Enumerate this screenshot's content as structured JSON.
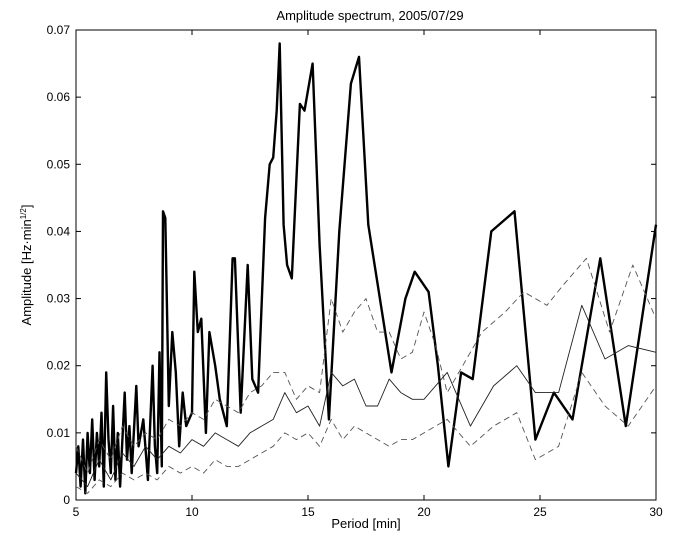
{
  "chart_data": {
    "type": "line",
    "title": "Amplitude spectrum, 2005/07/29",
    "xlabel": "Period [min]",
    "ylabel_main": "Amplitude [Hz",
    "ylabel_unit": "·min",
    "ylabel_exp": "1/2",
    "ylabel_close": "]",
    "xlim": [
      5,
      30
    ],
    "ylim": [
      0,
      0.07
    ],
    "xticks": [
      5,
      10,
      15,
      20,
      25,
      30
    ],
    "yticks": [
      0,
      0.01,
      0.02,
      0.03,
      0.04,
      0.05,
      0.06,
      0.07
    ],
    "ytick_labels": [
      "0",
      "0.01",
      "0.02",
      "0.03",
      "0.04",
      "0.05",
      "0.06",
      "0.07"
    ],
    "grid": false,
    "series": [
      {
        "style": "thick",
        "color": "#000000",
        "points": [
          [
            5.0,
            0.004
          ],
          [
            5.1,
            0.008
          ],
          [
            5.2,
            0.002
          ],
          [
            5.3,
            0.009
          ],
          [
            5.4,
            0.001
          ],
          [
            5.5,
            0.01
          ],
          [
            5.6,
            0.004
          ],
          [
            5.7,
            0.012
          ],
          [
            5.8,
            0.003
          ],
          [
            5.9,
            0.01
          ],
          [
            6.0,
            0.005
          ],
          [
            6.1,
            0.013
          ],
          [
            6.2,
            0.002
          ],
          [
            6.3,
            0.019
          ],
          [
            6.4,
            0.009
          ],
          [
            6.5,
            0.004
          ],
          [
            6.6,
            0.014
          ],
          [
            6.7,
            0.003
          ],
          [
            6.8,
            0.01
          ],
          [
            6.9,
            0.002
          ],
          [
            7.1,
            0.016
          ],
          [
            7.2,
            0.006
          ],
          [
            7.3,
            0.011
          ],
          [
            7.4,
            0.004
          ],
          [
            7.6,
            0.017
          ],
          [
            7.7,
            0.008
          ],
          [
            7.9,
            0.012
          ],
          [
            8.1,
            0.003
          ],
          [
            8.3,
            0.02
          ],
          [
            8.4,
            0.008
          ],
          [
            8.5,
            0.004
          ],
          [
            8.6,
            0.022
          ],
          [
            8.7,
            0.005
          ],
          [
            8.75,
            0.043
          ],
          [
            8.85,
            0.042
          ],
          [
            9.0,
            0.014
          ],
          [
            9.15,
            0.025
          ],
          [
            9.3,
            0.019
          ],
          [
            9.45,
            0.008
          ],
          [
            9.6,
            0.016
          ],
          [
            9.75,
            0.011
          ],
          [
            10.0,
            0.013
          ],
          [
            10.1,
            0.034
          ],
          [
            10.25,
            0.025
          ],
          [
            10.4,
            0.027
          ],
          [
            10.6,
            0.01
          ],
          [
            10.75,
            0.025
          ],
          [
            11.0,
            0.02
          ],
          [
            11.2,
            0.015
          ],
          [
            11.5,
            0.011
          ],
          [
            11.75,
            0.036
          ],
          [
            11.85,
            0.036
          ],
          [
            12.1,
            0.013
          ],
          [
            12.4,
            0.035
          ],
          [
            12.6,
            0.018
          ],
          [
            12.85,
            0.016
          ],
          [
            13.15,
            0.042
          ],
          [
            13.35,
            0.05
          ],
          [
            13.5,
            0.051
          ],
          [
            13.65,
            0.058
          ],
          [
            13.78,
            0.068
          ],
          [
            13.95,
            0.041
          ],
          [
            14.1,
            0.035
          ],
          [
            14.3,
            0.033
          ],
          [
            14.65,
            0.059
          ],
          [
            14.85,
            0.058
          ],
          [
            15.2,
            0.065
          ],
          [
            15.5,
            0.038
          ],
          [
            15.9,
            0.012
          ],
          [
            16.35,
            0.04
          ],
          [
            16.85,
            0.062
          ],
          [
            17.2,
            0.066
          ],
          [
            17.6,
            0.041
          ],
          [
            18.1,
            0.03
          ],
          [
            18.6,
            0.019
          ],
          [
            19.2,
            0.03
          ],
          [
            19.6,
            0.034
          ],
          [
            20.2,
            0.031
          ],
          [
            20.6,
            0.02
          ],
          [
            21.05,
            0.005
          ],
          [
            21.6,
            0.019
          ],
          [
            22.1,
            0.018
          ],
          [
            22.9,
            0.04
          ],
          [
            23.9,
            0.043
          ],
          [
            24.8,
            0.009
          ],
          [
            25.6,
            0.016
          ],
          [
            26.4,
            0.012
          ],
          [
            27.6,
            0.036
          ],
          [
            28.7,
            0.011
          ],
          [
            30.0,
            0.041
          ]
        ]
      },
      {
        "style": "dashed",
        "color": "#555555",
        "points": [
          [
            5.0,
            0.008
          ],
          [
            5.5,
            0.004
          ],
          [
            6.0,
            0.009
          ],
          [
            6.5,
            0.006
          ],
          [
            7.0,
            0.011
          ],
          [
            7.5,
            0.008
          ],
          [
            8.0,
            0.01
          ],
          [
            8.5,
            0.009
          ],
          [
            9.0,
            0.012
          ],
          [
            9.5,
            0.011
          ],
          [
            10.0,
            0.013
          ],
          [
            10.5,
            0.012
          ],
          [
            11.0,
            0.015
          ],
          [
            11.5,
            0.014
          ],
          [
            12.0,
            0.013
          ],
          [
            12.5,
            0.016
          ],
          [
            13.0,
            0.017
          ],
          [
            13.5,
            0.019
          ],
          [
            14.0,
            0.019
          ],
          [
            14.5,
            0.015
          ],
          [
            15.0,
            0.017
          ],
          [
            15.5,
            0.016
          ],
          [
            16.0,
            0.03
          ],
          [
            16.5,
            0.025
          ],
          [
            17.0,
            0.028
          ],
          [
            17.5,
            0.03
          ],
          [
            18.0,
            0.025
          ],
          [
            18.5,
            0.025
          ],
          [
            19.0,
            0.021
          ],
          [
            19.5,
            0.022
          ],
          [
            20.0,
            0.028
          ],
          [
            20.5,
            0.023
          ],
          [
            21.0,
            0.016
          ],
          [
            22.0,
            0.022
          ],
          [
            22.5,
            0.025
          ],
          [
            23.5,
            0.028
          ],
          [
            24.3,
            0.031
          ],
          [
            25.3,
            0.029
          ],
          [
            26.0,
            0.032
          ],
          [
            27.0,
            0.036
          ],
          [
            28.0,
            0.025
          ],
          [
            29.0,
            0.035
          ],
          [
            30.0,
            0.027
          ]
        ]
      },
      {
        "style": "thin",
        "color": "#222222",
        "points": [
          [
            5.0,
            0.004
          ],
          [
            5.5,
            0.002
          ],
          [
            6.0,
            0.006
          ],
          [
            6.5,
            0.003
          ],
          [
            7.0,
            0.007
          ],
          [
            7.5,
            0.005
          ],
          [
            8.0,
            0.008
          ],
          [
            8.5,
            0.006
          ],
          [
            9.0,
            0.008
          ],
          [
            9.5,
            0.007
          ],
          [
            10.0,
            0.009
          ],
          [
            10.5,
            0.008
          ],
          [
            11.0,
            0.01
          ],
          [
            11.5,
            0.009
          ],
          [
            12.0,
            0.008
          ],
          [
            12.5,
            0.01
          ],
          [
            13.0,
            0.011
          ],
          [
            13.5,
            0.012
          ],
          [
            14.0,
            0.016
          ],
          [
            14.5,
            0.013
          ],
          [
            15.0,
            0.014
          ],
          [
            15.5,
            0.011
          ],
          [
            16.0,
            0.019
          ],
          [
            16.5,
            0.017
          ],
          [
            17.0,
            0.018
          ],
          [
            17.5,
            0.014
          ],
          [
            18.0,
            0.014
          ],
          [
            18.5,
            0.018
          ],
          [
            19.0,
            0.016
          ],
          [
            19.5,
            0.015
          ],
          [
            20.0,
            0.015
          ],
          [
            21.0,
            0.019
          ],
          [
            22.0,
            0.011
          ],
          [
            23.0,
            0.017
          ],
          [
            24.0,
            0.02
          ],
          [
            24.8,
            0.016
          ],
          [
            25.8,
            0.016
          ],
          [
            26.8,
            0.029
          ],
          [
            27.8,
            0.021
          ],
          [
            28.8,
            0.023
          ],
          [
            30.0,
            0.022
          ]
        ]
      },
      {
        "style": "dashed",
        "color": "#555555",
        "points": [
          [
            5.0,
            0.002
          ],
          [
            5.5,
            0.001
          ],
          [
            6.0,
            0.003
          ],
          [
            6.5,
            0.002
          ],
          [
            7.0,
            0.004
          ],
          [
            7.5,
            0.003
          ],
          [
            8.0,
            0.004
          ],
          [
            8.5,
            0.003
          ],
          [
            9.0,
            0.005
          ],
          [
            9.5,
            0.004
          ],
          [
            10.0,
            0.005
          ],
          [
            10.5,
            0.004
          ],
          [
            11.0,
            0.006
          ],
          [
            11.5,
            0.005
          ],
          [
            12.0,
            0.005
          ],
          [
            12.5,
            0.006
          ],
          [
            13.0,
            0.007
          ],
          [
            13.5,
            0.008
          ],
          [
            14.0,
            0.01
          ],
          [
            14.5,
            0.009
          ],
          [
            15.0,
            0.01
          ],
          [
            15.5,
            0.008
          ],
          [
            16.0,
            0.012
          ],
          [
            16.5,
            0.009
          ],
          [
            17.0,
            0.011
          ],
          [
            17.5,
            0.01
          ],
          [
            18.0,
            0.009
          ],
          [
            18.5,
            0.008
          ],
          [
            19.0,
            0.009
          ],
          [
            19.5,
            0.009
          ],
          [
            20.0,
            0.01
          ],
          [
            21.0,
            0.012
          ],
          [
            22.0,
            0.008
          ],
          [
            23.0,
            0.011
          ],
          [
            24.0,
            0.013
          ],
          [
            24.8,
            0.006
          ],
          [
            25.8,
            0.008
          ],
          [
            26.8,
            0.019
          ],
          [
            27.8,
            0.014
          ],
          [
            28.8,
            0.011
          ],
          [
            30.0,
            0.017
          ]
        ]
      }
    ]
  }
}
